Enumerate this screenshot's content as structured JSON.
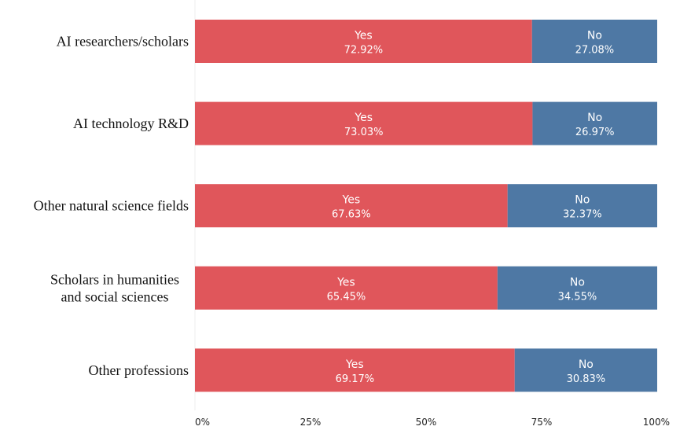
{
  "chart_data": {
    "type": "bar",
    "orientation": "horizontal",
    "stacked": true,
    "categories": [
      [
        "AI researchers/scholars"
      ],
      [
        "AI technology R&D"
      ],
      [
        "Other natural science fields"
      ],
      [
        "Scholars in humanities",
        "and social sciences"
      ],
      [
        "Other professions"
      ]
    ],
    "series": [
      {
        "name": "Yes",
        "color": "#e0565b",
        "values": [
          72.92,
          73.03,
          67.63,
          65.45,
          69.17
        ],
        "value_labels": [
          "72.92%",
          "73.03%",
          "67.63%",
          "65.45%",
          "69.17%"
        ]
      },
      {
        "name": "No",
        "color": "#4e78a4",
        "values": [
          27.08,
          26.97,
          32.37,
          34.55,
          30.83
        ],
        "value_labels": [
          "27.08%",
          "26.97%",
          "32.37%",
          "34.55%",
          "30.83%"
        ]
      }
    ],
    "x_ticks": [
      0,
      25,
      50,
      75,
      100
    ],
    "x_tick_labels": [
      "0%",
      "25%",
      "50%",
      "75%",
      "100%"
    ],
    "xlim": [
      0,
      100
    ],
    "grid": false,
    "legend": "none"
  }
}
